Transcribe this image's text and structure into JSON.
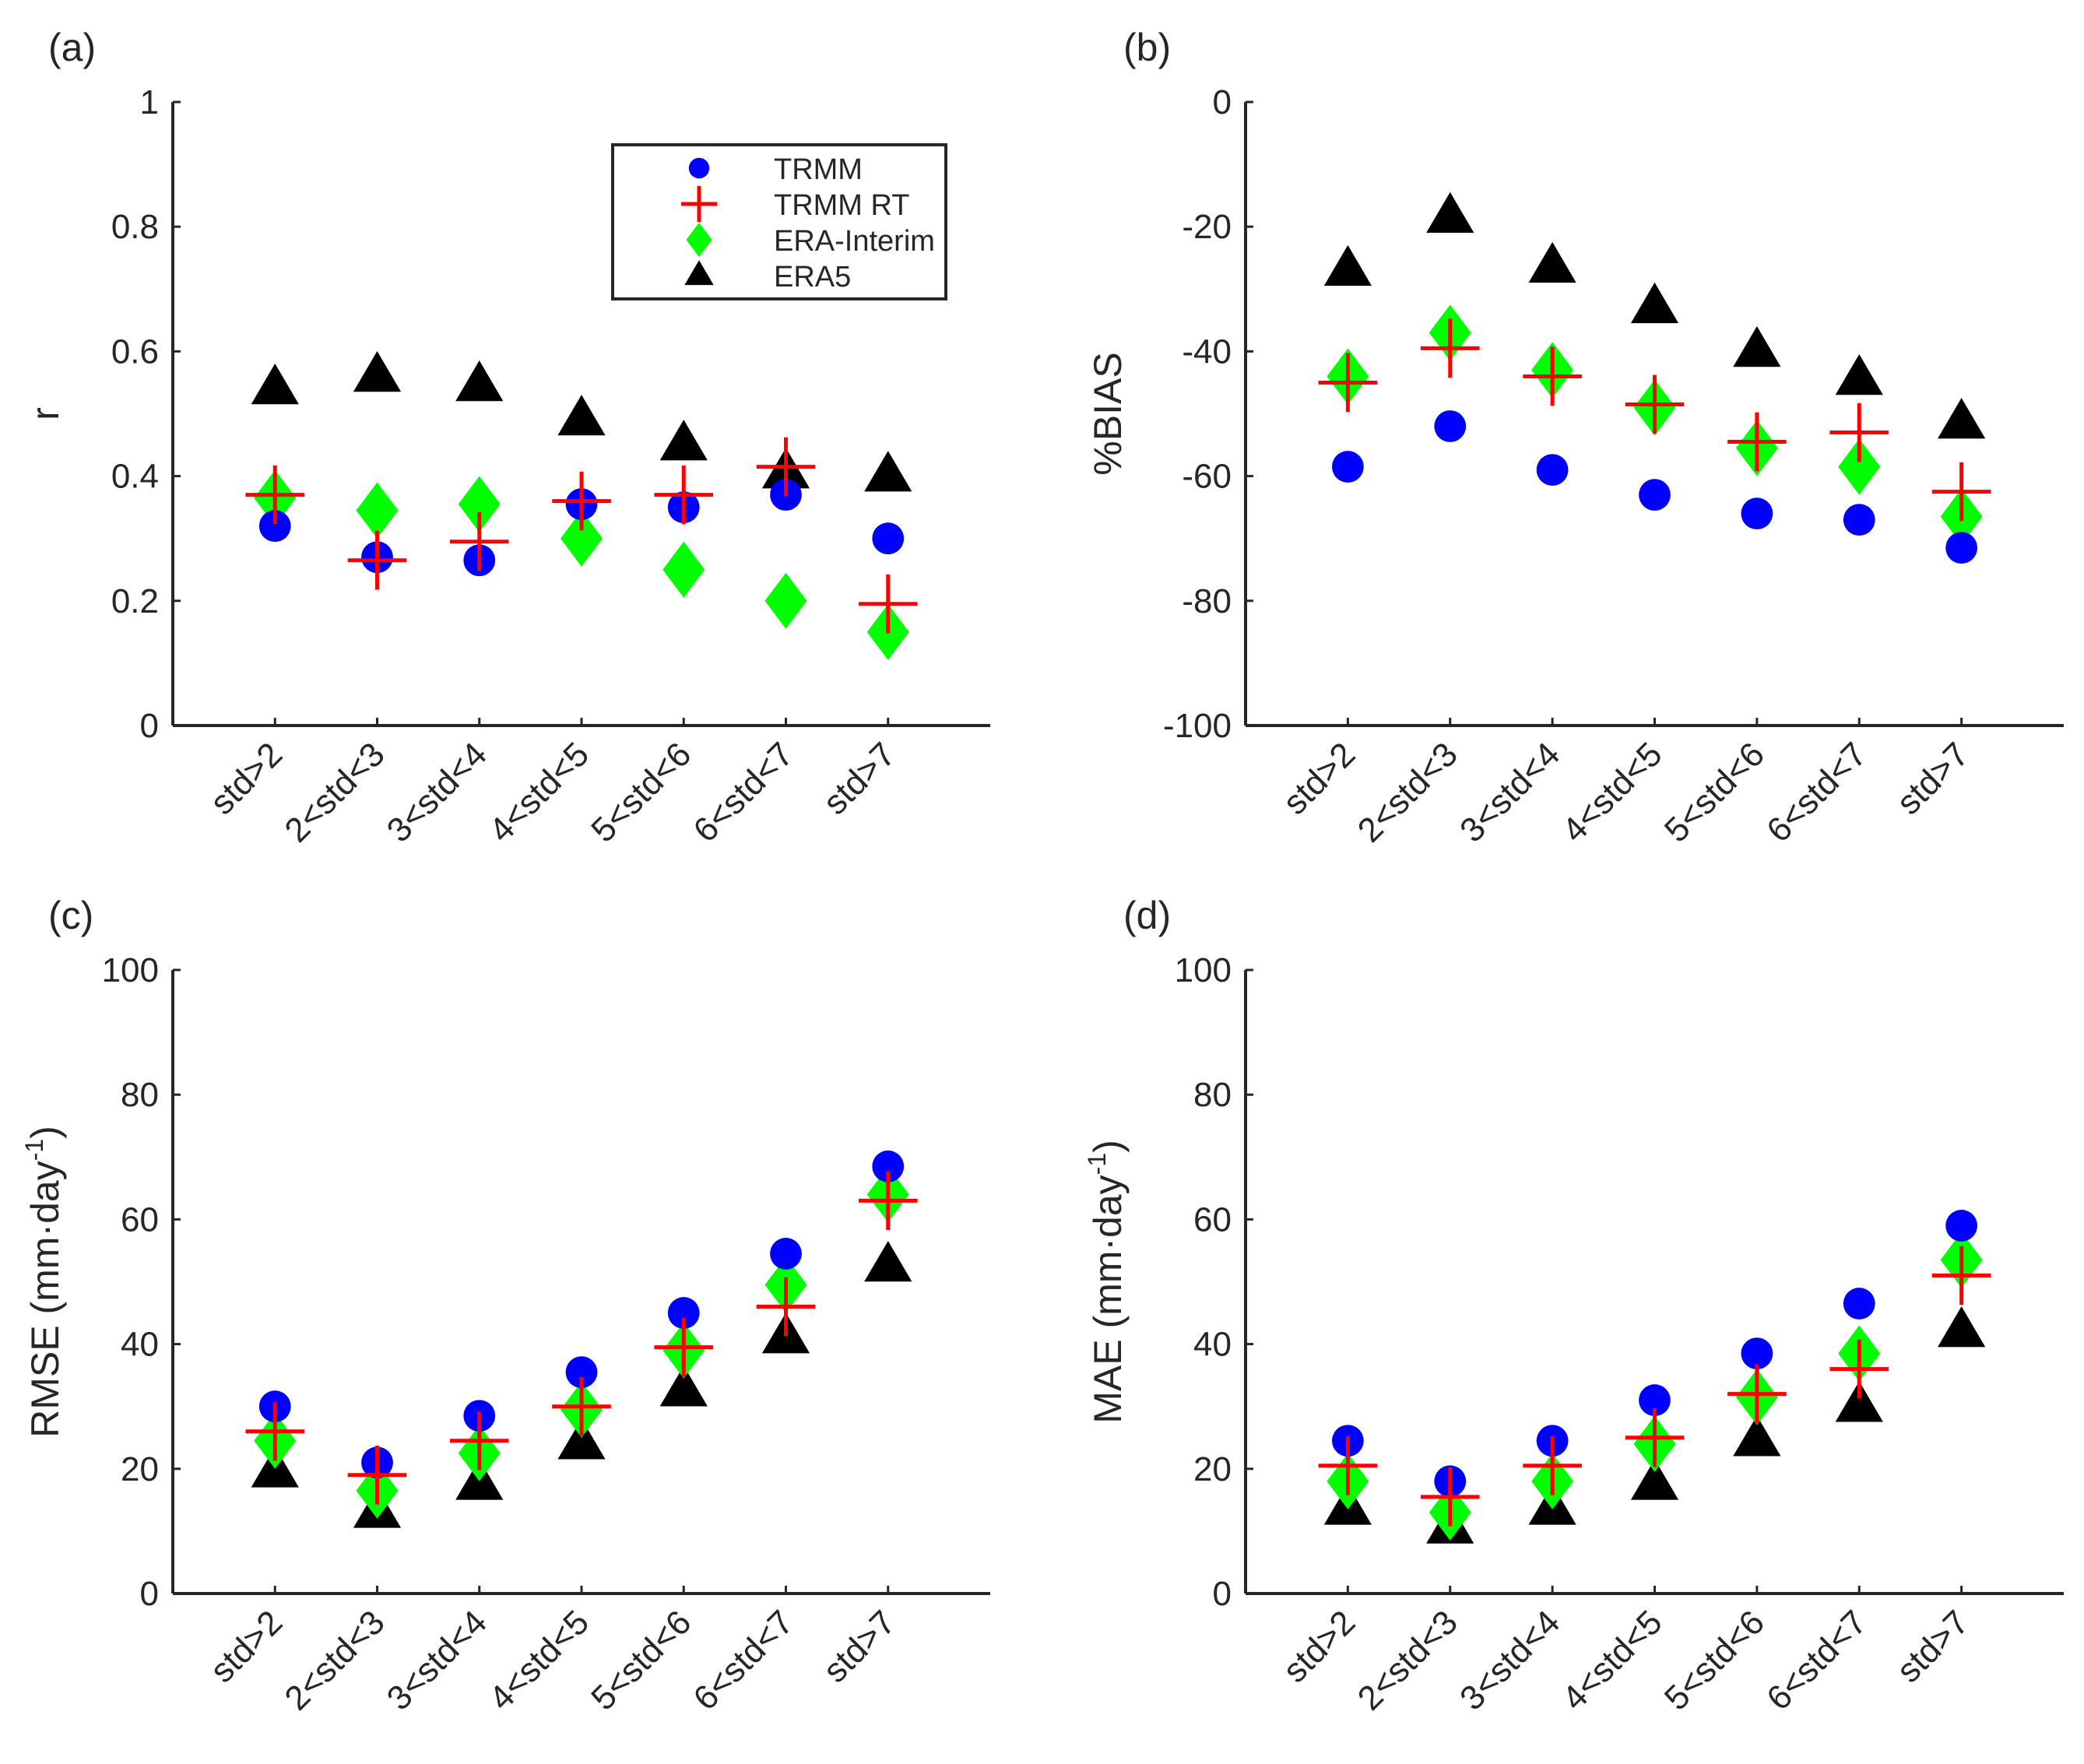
{
  "legend": [
    {
      "name": "TRMM",
      "marker": "circle",
      "color": "#0000ff"
    },
    {
      "name": "TRMM RT",
      "marker": "plus",
      "color": "#ff0000"
    },
    {
      "name": "ERA-Interim",
      "marker": "diamond",
      "color": "#00ff00"
    },
    {
      "name": "ERA5",
      "marker": "triangle",
      "color": "#000000"
    }
  ],
  "chart_data": [
    {
      "type": "scatter",
      "panel_label": "(a)",
      "ylabel": "r",
      "ylabel_sup": "",
      "ylabel_tail": "",
      "categories": [
        "std>2",
        "2<std<3",
        "3<std<4",
        "4<std<5",
        "5<std<6",
        "6<std<7",
        "std>7"
      ],
      "ylim": [
        0,
        1
      ],
      "yticks": [
        0,
        0.2,
        0.4,
        0.6,
        0.8,
        1
      ],
      "ytick_labels": [
        "0",
        "0.2",
        "0.4",
        "0.6",
        "0.8",
        "1"
      ],
      "legend_position": "top-right",
      "series": [
        {
          "name": "TRMM",
          "values": [
            0.32,
            0.27,
            0.265,
            0.355,
            0.35,
            0.37,
            0.3
          ]
        },
        {
          "name": "TRMM RT",
          "values": [
            0.37,
            0.265,
            0.295,
            0.36,
            0.37,
            0.415,
            0.195
          ]
        },
        {
          "name": "ERA-Interim",
          "values": [
            0.365,
            0.345,
            0.355,
            0.3,
            0.25,
            0.2,
            0.15
          ]
        },
        {
          "name": "ERA5",
          "values": [
            0.54,
            0.56,
            0.545,
            0.49,
            0.45,
            0.405,
            0.4
          ]
        }
      ]
    },
    {
      "type": "scatter",
      "panel_label": "(b)",
      "ylabel": "%BIAS",
      "ylabel_sup": "",
      "ylabel_tail": "",
      "categories": [
        "std>2",
        "2<std<3",
        "3<std<4",
        "4<std<5",
        "5<std<6",
        "6<std<7",
        "std>7"
      ],
      "ylim": [
        -100,
        0
      ],
      "yticks": [
        -100,
        -80,
        -60,
        -40,
        -20,
        0
      ],
      "ytick_labels": [
        "-100",
        "-80",
        "-60",
        "-40",
        "-20",
        "0"
      ],
      "series": [
        {
          "name": "TRMM",
          "values": [
            -58.5,
            -52,
            -59,
            -63,
            -66,
            -67,
            -71.5
          ]
        },
        {
          "name": "TRMM RT",
          "values": [
            -45,
            -39.5,
            -44,
            -48.5,
            -54.5,
            -53,
            -62.5
          ]
        },
        {
          "name": "ERA-Interim",
          "values": [
            -44,
            -37,
            -43,
            -49,
            -55.5,
            -58.5,
            -66.5
          ]
        },
        {
          "name": "ERA5",
          "values": [
            -27,
            -18.5,
            -26.5,
            -33,
            -40,
            -44.5,
            -51.5
          ]
        }
      ]
    },
    {
      "type": "scatter",
      "panel_label": "(c)",
      "ylabel": "RMSE (mm·day",
      "ylabel_sup": "-1",
      "ylabel_tail": ")",
      "categories": [
        "std>2",
        "2<std<3",
        "3<std<4",
        "4<std<5",
        "5<std<6",
        "6<std<7",
        "std>7"
      ],
      "ylim": [
        0,
        100
      ],
      "yticks": [
        0,
        20,
        40,
        60,
        80,
        100
      ],
      "ytick_labels": [
        "0",
        "20",
        "40",
        "60",
        "80",
        "100"
      ],
      "series": [
        {
          "name": "TRMM",
          "values": [
            30,
            21,
            28.5,
            35.5,
            45,
            54.5,
            68.5
          ]
        },
        {
          "name": "TRMM RT",
          "values": [
            26,
            19,
            24.5,
            30,
            39.5,
            46,
            63
          ]
        },
        {
          "name": "ERA-Interim",
          "values": [
            24.5,
            16.5,
            22.5,
            29.5,
            39,
            49.5,
            64
          ]
        },
        {
          "name": "ERA5",
          "values": [
            19.5,
            13,
            17.5,
            24,
            32.5,
            41,
            52.5
          ]
        }
      ]
    },
    {
      "type": "scatter",
      "panel_label": "(d)",
      "ylabel": "MAE (mm·day",
      "ylabel_sup": "-1",
      "ylabel_tail": ")",
      "categories": [
        "std>2",
        "2<std<3",
        "3<std<4",
        "4<std<5",
        "5<std<6",
        "6<std<7",
        "std>7"
      ],
      "ylim": [
        0,
        100
      ],
      "yticks": [
        0,
        20,
        40,
        60,
        80,
        100
      ],
      "ytick_labels": [
        "0",
        "20",
        "40",
        "60",
        "80",
        "100"
      ],
      "series": [
        {
          "name": "TRMM",
          "values": [
            24.5,
            18,
            24.5,
            31,
            38.5,
            46.5,
            59
          ]
        },
        {
          "name": "TRMM RT",
          "values": [
            20.5,
            15.5,
            20.5,
            25,
            32,
            36,
            51
          ]
        },
        {
          "name": "ERA-Interim",
          "values": [
            18,
            13,
            18,
            24,
            31.5,
            38.5,
            53.5
          ]
        },
        {
          "name": "ERA5",
          "values": [
            13.5,
            10.5,
            13.5,
            17.5,
            24.5,
            30,
            42
          ]
        }
      ]
    }
  ]
}
